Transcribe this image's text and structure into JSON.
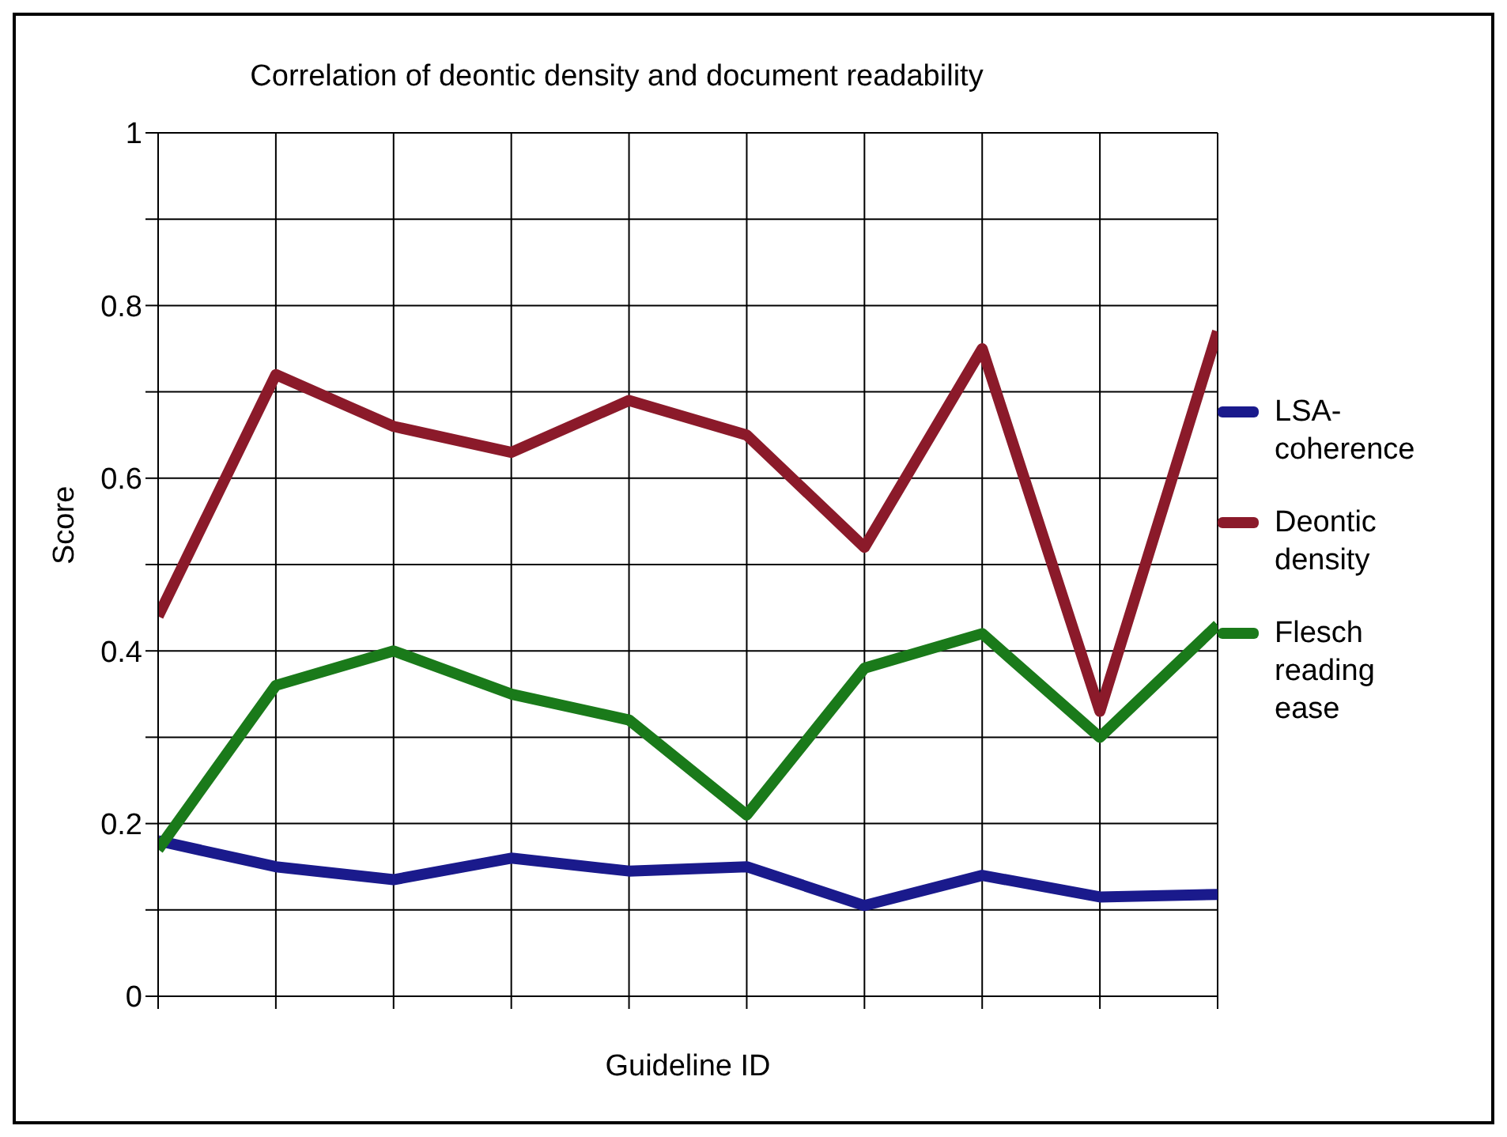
{
  "chart_data": {
    "type": "line",
    "title": "Correlation of deontic density and document readability",
    "xlabel": "Guideline ID",
    "ylabel": "Score",
    "categories": [
      null,
      null,
      null,
      null,
      null,
      null,
      null,
      null,
      null,
      null
    ],
    "series": [
      {
        "name": "LSA-coherence",
        "color": "#1a1a8c",
        "values": [
          0.18,
          0.15,
          0.135,
          0.16,
          0.145,
          0.15,
          0.105,
          0.14,
          0.115,
          0.118
        ]
      },
      {
        "name": "Deontic density",
        "color": "#8b1a2a",
        "values": [
          0.44,
          0.72,
          0.66,
          0.63,
          0.69,
          0.65,
          0.52,
          0.75,
          0.33,
          0.77
        ]
      },
      {
        "name": "Flesch reading ease",
        "color": "#1a7a1a",
        "values": [
          0.17,
          0.36,
          0.4,
          0.35,
          0.32,
          0.21,
          0.38,
          0.42,
          0.3,
          0.43
        ]
      }
    ],
    "ylim": [
      0,
      1
    ],
    "yticks": [
      0,
      {
        "value": 0.1,
        "label": null
      },
      0.2,
      {
        "value": 0.3,
        "label": null
      },
      0.4,
      {
        "value": 0.5,
        "label": null
      },
      0.6,
      {
        "value": 0.7,
        "label": null
      },
      0.8,
      {
        "value": 0.9,
        "label": null
      },
      1
    ],
    "grid": true,
    "legend": "right"
  }
}
